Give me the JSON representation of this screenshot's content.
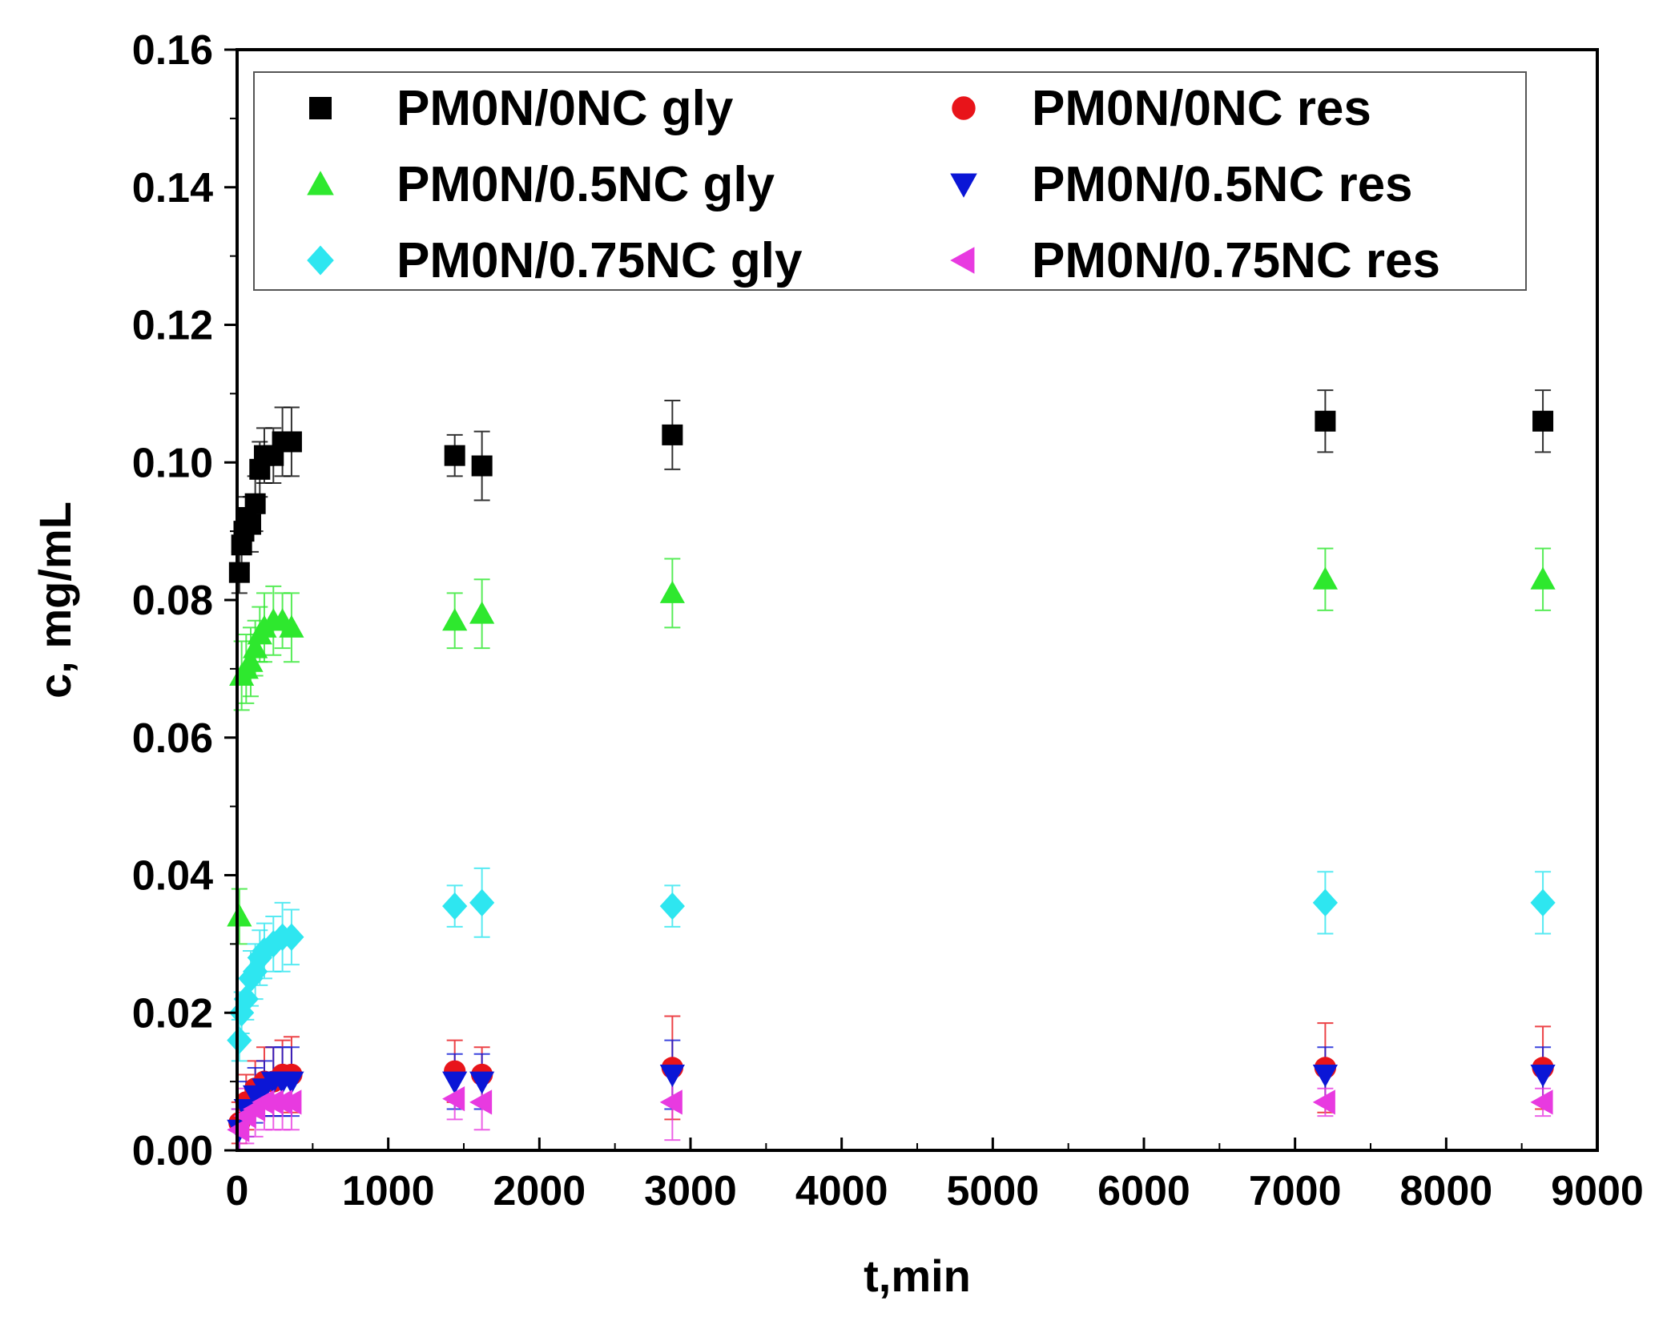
{
  "chart_data": {
    "type": "scatter",
    "title": "",
    "xlabel": "t,min",
    "ylabel": "c, mg/mL",
    "xlim": [
      0,
      9000
    ],
    "ylim": [
      0,
      0.16
    ],
    "xticks": [
      0,
      1000,
      2000,
      3000,
      4000,
      5000,
      6000,
      7000,
      8000,
      9000
    ],
    "yticks": [
      0.0,
      0.02,
      0.04,
      0.06,
      0.08,
      0.1,
      0.12,
      0.14,
      0.16
    ],
    "xtick_labels": [
      "0",
      "1000",
      "2000",
      "3000",
      "4000",
      "5000",
      "6000",
      "7000",
      "8000",
      "9000"
    ],
    "ytick_labels": [
      "0.00",
      "0.02",
      "0.04",
      "0.06",
      "0.08",
      "0.10",
      "0.12",
      "0.14",
      "0.16"
    ],
    "legend_position": "top",
    "grid": false,
    "error_bars": true,
    "series": [
      {
        "name": "PM0N/0NC gly",
        "marker": "square",
        "color": "#000000",
        "points": [
          {
            "x": 15,
            "y": 0.084,
            "err": 0.003
          },
          {
            "x": 30,
            "y": 0.088,
            "err": 0.003
          },
          {
            "x": 45,
            "y": 0.09,
            "err": 0.003
          },
          {
            "x": 60,
            "y": 0.092,
            "err": 0.003
          },
          {
            "x": 90,
            "y": 0.091,
            "err": 0.004
          },
          {
            "x": 120,
            "y": 0.094,
            "err": 0.004
          },
          {
            "x": 150,
            "y": 0.099,
            "err": 0.004
          },
          {
            "x": 180,
            "y": 0.101,
            "err": 0.004
          },
          {
            "x": 240,
            "y": 0.101,
            "err": 0.004
          },
          {
            "x": 300,
            "y": 0.103,
            "err": 0.005
          },
          {
            "x": 360,
            "y": 0.103,
            "err": 0.005
          },
          {
            "x": 1440,
            "y": 0.101,
            "err": 0.003
          },
          {
            "x": 1620,
            "y": 0.0995,
            "err": 0.005
          },
          {
            "x": 2880,
            "y": 0.104,
            "err": 0.005
          },
          {
            "x": 7200,
            "y": 0.106,
            "err": 0.0045
          },
          {
            "x": 8640,
            "y": 0.106,
            "err": 0.0045
          }
        ]
      },
      {
        "name": "PM0N/0NC res",
        "marker": "circle",
        "color": "#e8141a",
        "points": [
          {
            "x": 15,
            "y": 0.004,
            "err": 0.003
          },
          {
            "x": 60,
            "y": 0.007,
            "err": 0.004
          },
          {
            "x": 120,
            "y": 0.009,
            "err": 0.004
          },
          {
            "x": 180,
            "y": 0.01,
            "err": 0.005
          },
          {
            "x": 240,
            "y": 0.01,
            "err": 0.005
          },
          {
            "x": 300,
            "y": 0.011,
            "err": 0.005
          },
          {
            "x": 360,
            "y": 0.011,
            "err": 0.0055
          },
          {
            "x": 1440,
            "y": 0.0115,
            "err": 0.0045
          },
          {
            "x": 1620,
            "y": 0.011,
            "err": 0.004
          },
          {
            "x": 2880,
            "y": 0.012,
            "err": 0.0075
          },
          {
            "x": 7200,
            "y": 0.012,
            "err": 0.0065
          },
          {
            "x": 8640,
            "y": 0.012,
            "err": 0.006
          }
        ]
      },
      {
        "name": "PM0N/0.5NC gly",
        "marker": "triangle-up",
        "color": "#2ee82e",
        "points": [
          {
            "x": 15,
            "y": 0.034,
            "err": 0.004
          },
          {
            "x": 30,
            "y": 0.069,
            "err": 0.005
          },
          {
            "x": 60,
            "y": 0.07,
            "err": 0.005
          },
          {
            "x": 90,
            "y": 0.071,
            "err": 0.005
          },
          {
            "x": 120,
            "y": 0.073,
            "err": 0.004
          },
          {
            "x": 150,
            "y": 0.075,
            "err": 0.004
          },
          {
            "x": 180,
            "y": 0.076,
            "err": 0.005
          },
          {
            "x": 240,
            "y": 0.077,
            "err": 0.005
          },
          {
            "x": 300,
            "y": 0.077,
            "err": 0.004
          },
          {
            "x": 360,
            "y": 0.076,
            "err": 0.005
          },
          {
            "x": 1440,
            "y": 0.077,
            "err": 0.004
          },
          {
            "x": 1620,
            "y": 0.078,
            "err": 0.005
          },
          {
            "x": 2880,
            "y": 0.081,
            "err": 0.005
          },
          {
            "x": 7200,
            "y": 0.083,
            "err": 0.0045
          },
          {
            "x": 8640,
            "y": 0.083,
            "err": 0.0045
          }
        ]
      },
      {
        "name": "PM0N/0.5NC res",
        "marker": "triangle-down",
        "color": "#0b16d6",
        "points": [
          {
            "x": 15,
            "y": 0.003,
            "err": 0.003
          },
          {
            "x": 60,
            "y": 0.006,
            "err": 0.004
          },
          {
            "x": 120,
            "y": 0.008,
            "err": 0.004
          },
          {
            "x": 180,
            "y": 0.009,
            "err": 0.004
          },
          {
            "x": 240,
            "y": 0.01,
            "err": 0.005
          },
          {
            "x": 300,
            "y": 0.01,
            "err": 0.005
          },
          {
            "x": 360,
            "y": 0.01,
            "err": 0.005
          },
          {
            "x": 1440,
            "y": 0.01,
            "err": 0.004
          },
          {
            "x": 1620,
            "y": 0.01,
            "err": 0.004
          },
          {
            "x": 2880,
            "y": 0.011,
            "err": 0.005
          },
          {
            "x": 7200,
            "y": 0.011,
            "err": 0.004
          },
          {
            "x": 8640,
            "y": 0.011,
            "err": 0.004
          }
        ]
      },
      {
        "name": "PM0N/0.75NC gly",
        "marker": "diamond",
        "color": "#2ee6f0",
        "points": [
          {
            "x": 15,
            "y": 0.016,
            "err": 0.003
          },
          {
            "x": 30,
            "y": 0.02,
            "err": 0.003
          },
          {
            "x": 60,
            "y": 0.022,
            "err": 0.003
          },
          {
            "x": 90,
            "y": 0.025,
            "err": 0.004
          },
          {
            "x": 120,
            "y": 0.026,
            "err": 0.004
          },
          {
            "x": 150,
            "y": 0.028,
            "err": 0.004
          },
          {
            "x": 180,
            "y": 0.029,
            "err": 0.004
          },
          {
            "x": 240,
            "y": 0.03,
            "err": 0.004
          },
          {
            "x": 300,
            "y": 0.031,
            "err": 0.005
          },
          {
            "x": 360,
            "y": 0.031,
            "err": 0.004
          },
          {
            "x": 1440,
            "y": 0.0355,
            "err": 0.003
          },
          {
            "x": 1620,
            "y": 0.036,
            "err": 0.005
          },
          {
            "x": 2880,
            "y": 0.0355,
            "err": 0.003
          },
          {
            "x": 7200,
            "y": 0.036,
            "err": 0.0045
          },
          {
            "x": 8640,
            "y": 0.036,
            "err": 0.0045
          }
        ]
      },
      {
        "name": "PM0N/0.75NC res",
        "marker": "triangle-left",
        "color": "#e83ae0",
        "points": [
          {
            "x": 15,
            "y": 0.003,
            "err": 0.003
          },
          {
            "x": 60,
            "y": 0.005,
            "err": 0.004
          },
          {
            "x": 120,
            "y": 0.006,
            "err": 0.004
          },
          {
            "x": 180,
            "y": 0.007,
            "err": 0.004
          },
          {
            "x": 240,
            "y": 0.007,
            "err": 0.004
          },
          {
            "x": 300,
            "y": 0.007,
            "err": 0.004
          },
          {
            "x": 360,
            "y": 0.007,
            "err": 0.004
          },
          {
            "x": 1440,
            "y": 0.0075,
            "err": 0.003
          },
          {
            "x": 1620,
            "y": 0.007,
            "err": 0.004
          },
          {
            "x": 2880,
            "y": 0.007,
            "err": 0.0055
          },
          {
            "x": 7200,
            "y": 0.007,
            "err": 0.002
          },
          {
            "x": 8640,
            "y": 0.007,
            "err": 0.002
          }
        ]
      }
    ]
  }
}
